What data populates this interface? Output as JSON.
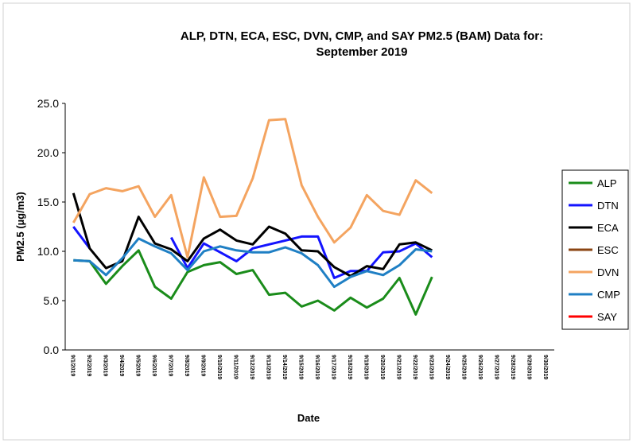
{
  "chart_data": {
    "type": "line",
    "title": [
      "ALP, DTN, ECA, ESC, DVN, CMP, and SAY PM2.5 (BAM) Data for:",
      "September 2019"
    ],
    "y_label": "PM2.5 (µg/m3)",
    "x_label": "Date",
    "categories": [
      "9/1/2019",
      "9/2/2019",
      "9/3/2019",
      "9/4/2019",
      "9/5/2019",
      "9/6/2019",
      "9/7/2019",
      "9/8/2019",
      "9/9/2019",
      "9/10/2019",
      "9/11/2019",
      "9/12/2019",
      "9/13/2019",
      "9/14/2019",
      "9/15/2019",
      "9/16/2019",
      "9/17/2019",
      "9/18/2019",
      "9/19/2019",
      "9/20/2019",
      "9/21/2019",
      "9/22/2019",
      "9/23/2019",
      "9/24/2019",
      "9/25/2019",
      "9/26/2019",
      "9/27/2019",
      "9/28/2019",
      "9/29/2019",
      "9/30/2019"
    ],
    "ylim": [
      0,
      25
    ],
    "yticks": [
      {
        "value": 0,
        "label": "0.0"
      },
      {
        "value": 5,
        "label": "5.0"
      },
      {
        "value": 10,
        "label": "10.0"
      },
      {
        "value": 15,
        "label": "15.0"
      },
      {
        "value": 20,
        "label": "20.0"
      },
      {
        "value": 25,
        "label": "25.0"
      }
    ],
    "legend": "right",
    "series": [
      {
        "name": "ALP",
        "color": "#1a8c1a",
        "values": [
          9.1,
          9.0,
          6.7,
          8.5,
          10.1,
          6.4,
          5.2,
          7.9,
          8.6,
          8.9,
          7.7,
          8.1,
          5.6,
          5.8,
          4.4,
          5.0,
          4.0,
          5.3,
          4.3,
          5.2,
          7.3,
          3.6,
          7.4,
          null,
          null,
          null,
          null,
          null,
          null,
          null
        ]
      },
      {
        "name": "DTN",
        "color": "#1414ff",
        "values": [
          12.5,
          10.3,
          null,
          null,
          null,
          null,
          11.4,
          8.3,
          10.8,
          9.9,
          9.0,
          10.3,
          10.7,
          11.1,
          11.5,
          11.5,
          7.3,
          8.0,
          8.0,
          9.9,
          10.0,
          10.8,
          9.4,
          null,
          null,
          null,
          null,
          null,
          null,
          null
        ]
      },
      {
        "name": "ECA",
        "color": "#000000",
        "values": [
          15.9,
          10.3,
          8.3,
          9.0,
          13.5,
          10.8,
          10.2,
          9.0,
          11.3,
          12.2,
          11.1,
          10.7,
          12.5,
          11.8,
          10.1,
          10.0,
          8.4,
          7.5,
          8.5,
          8.2,
          10.7,
          10.9,
          10.1,
          null,
          null,
          null,
          null,
          null,
          null,
          null
        ]
      },
      {
        "name": "ESC",
        "color": "#8b4513",
        "values": [
          null,
          null,
          null,
          null,
          null,
          null,
          null,
          null,
          null,
          null,
          null,
          null,
          null,
          null,
          null,
          null,
          null,
          null,
          null,
          null,
          null,
          null,
          null,
          null,
          null,
          null,
          null,
          null,
          null,
          null
        ]
      },
      {
        "name": "DVN",
        "color": "#f4a460",
        "values": [
          12.9,
          15.8,
          16.4,
          16.1,
          16.6,
          13.5,
          15.7,
          9.4,
          17.5,
          13.5,
          13.6,
          17.4,
          23.3,
          23.4,
          16.7,
          13.5,
          10.9,
          12.4,
          15.7,
          14.1,
          13.7,
          17.2,
          15.9,
          null,
          null,
          null,
          null,
          null,
          null,
          null
        ]
      },
      {
        "name": "CMP",
        "color": "#1f7fc4",
        "values": [
          9.1,
          9.0,
          7.6,
          9.3,
          11.3,
          10.5,
          9.8,
          8.1,
          10.0,
          10.5,
          10.1,
          9.9,
          9.9,
          10.4,
          9.8,
          8.6,
          6.4,
          7.4,
          8.0,
          7.6,
          8.6,
          10.2,
          10.0,
          null,
          null,
          null,
          null,
          null,
          null,
          null
        ]
      },
      {
        "name": "SAY",
        "color": "#ff0000",
        "values": [
          null,
          null,
          null,
          null,
          null,
          null,
          null,
          null,
          null,
          null,
          null,
          null,
          null,
          null,
          null,
          null,
          null,
          null,
          null,
          null,
          null,
          null,
          null,
          null,
          null,
          null,
          null,
          null,
          null,
          null
        ]
      }
    ]
  }
}
